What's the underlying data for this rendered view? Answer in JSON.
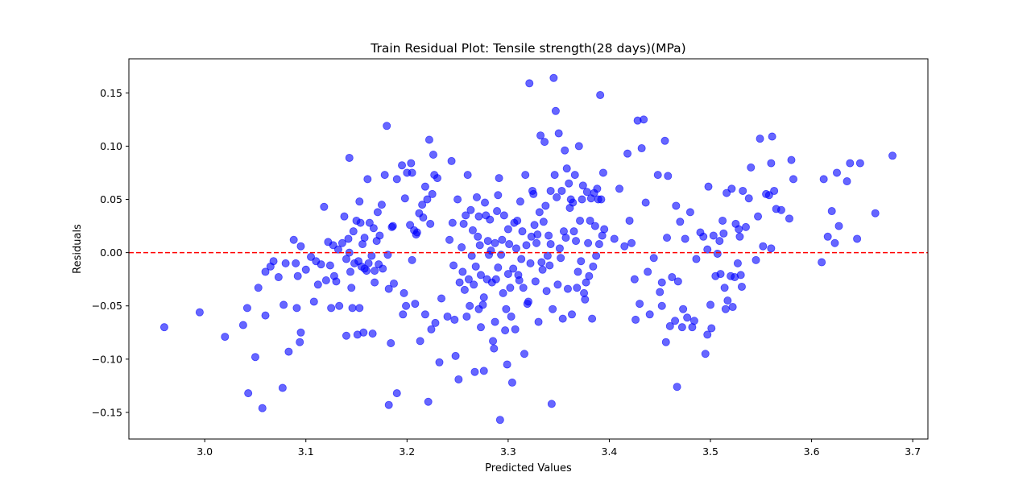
{
  "chart_data": {
    "type": "scatter",
    "title": "Train Residual Plot: Tensile strength(28 days)(MPa)",
    "xlabel": "Predicted Values",
    "ylabel": "Residuals",
    "xlim": [
      2.925,
      3.715
    ],
    "ylim": [
      -0.175,
      0.182
    ],
    "xticks": [
      3.0,
      3.1,
      3.2,
      3.3,
      3.4,
      3.5,
      3.6,
      3.7
    ],
    "xtick_labels": [
      "3.0",
      "3.1",
      "3.2",
      "3.3",
      "3.4",
      "3.5",
      "3.6",
      "3.7"
    ],
    "yticks": [
      -0.15,
      -0.1,
      -0.05,
      0.0,
      0.05,
      0.1,
      0.15
    ],
    "ytick_labels": [
      "−0.15",
      "−0.10",
      "−0.05",
      "0.00",
      "0.05",
      "0.10",
      "0.15"
    ],
    "grid": false,
    "marker_color": "#0000ff",
    "marker_alpha": 0.6,
    "reference_line": {
      "y": 0.0,
      "color": "#ff0000",
      "style": "dashed"
    },
    "points": [
      [
        2.96,
        -0.07
      ],
      [
        2.995,
        -0.056
      ],
      [
        3.02,
        -0.079
      ],
      [
        3.038,
        -0.068
      ],
      [
        3.042,
        -0.052
      ],
      [
        3.043,
        -0.132
      ],
      [
        3.05,
        -0.098
      ],
      [
        3.053,
        -0.033
      ],
      [
        3.057,
        -0.146
      ],
      [
        3.06,
        -0.059
      ],
      [
        3.06,
        -0.018
      ],
      [
        3.065,
        -0.013
      ],
      [
        3.068,
        -0.008
      ],
      [
        3.073,
        -0.023
      ],
      [
        3.077,
        -0.127
      ],
      [
        3.078,
        -0.049
      ],
      [
        3.08,
        -0.01
      ],
      [
        3.083,
        -0.093
      ],
      [
        3.088,
        0.012
      ],
      [
        3.09,
        -0.01
      ],
      [
        3.091,
        -0.052
      ],
      [
        3.092,
        -0.022
      ],
      [
        3.094,
        -0.084
      ],
      [
        3.095,
        -0.075
      ],
      [
        3.095,
        0.006
      ],
      [
        3.1,
        -0.016
      ],
      [
        3.105,
        -0.004
      ],
      [
        3.108,
        -0.046
      ],
      [
        3.11,
        -0.008
      ],
      [
        3.112,
        -0.03
      ],
      [
        3.115,
        -0.011
      ],
      [
        3.118,
        0.043
      ],
      [
        3.12,
        -0.026
      ],
      [
        3.122,
        0.01
      ],
      [
        3.124,
        -0.012
      ],
      [
        3.125,
        -0.052
      ],
      [
        3.127,
        0.007
      ],
      [
        3.128,
        -0.022
      ],
      [
        3.13,
        -0.027
      ],
      [
        3.132,
        0.003
      ],
      [
        3.133,
        -0.05
      ],
      [
        3.136,
        0.009
      ],
      [
        3.138,
        0.034
      ],
      [
        3.14,
        -0.006
      ],
      [
        3.14,
        -0.078
      ],
      [
        3.142,
        0.013
      ],
      [
        3.143,
        0.0
      ],
      [
        3.143,
        0.089
      ],
      [
        3.144,
        -0.018
      ],
      [
        3.145,
        -0.033
      ],
      [
        3.146,
        -0.052
      ],
      [
        3.147,
        0.02
      ],
      [
        3.148,
        -0.01
      ],
      [
        3.15,
        0.03
      ],
      [
        3.151,
        -0.077
      ],
      [
        3.152,
        -0.008
      ],
      [
        3.153,
        0.048
      ],
      [
        3.153,
        -0.052
      ],
      [
        3.154,
        0.028
      ],
      [
        3.155,
        -0.013
      ],
      [
        3.156,
        0.008
      ],
      [
        3.157,
        -0.075
      ],
      [
        3.158,
        0.014
      ],
      [
        3.158,
        -0.015
      ],
      [
        3.16,
        -0.017
      ],
      [
        3.161,
        0.069
      ],
      [
        3.162,
        -0.01
      ],
      [
        3.163,
        0.028
      ],
      [
        3.165,
        -0.003
      ],
      [
        3.166,
        -0.076
      ],
      [
        3.167,
        0.023
      ],
      [
        3.168,
        -0.017
      ],
      [
        3.168,
        -0.028
      ],
      [
        3.17,
        0.011
      ],
      [
        3.171,
        0.038
      ],
      [
        3.172,
        -0.011
      ],
      [
        3.173,
        0.016
      ],
      [
        3.175,
        0.045
      ],
      [
        3.176,
        -0.015
      ],
      [
        3.178,
        0.073
      ],
      [
        3.18,
        0.119
      ],
      [
        3.181,
        -0.002
      ],
      [
        3.182,
        -0.034
      ],
      [
        3.182,
        -0.143
      ],
      [
        3.184,
        -0.085
      ],
      [
        3.185,
        0.024
      ],
      [
        3.186,
        0.025
      ],
      [
        3.187,
        -0.029
      ],
      [
        3.19,
        0.069
      ],
      [
        3.19,
        -0.132
      ],
      [
        3.195,
        0.082
      ],
      [
        3.196,
        -0.058
      ],
      [
        3.197,
        -0.038
      ],
      [
        3.198,
        0.051
      ],
      [
        3.199,
        -0.05
      ],
      [
        3.2,
        0.075
      ],
      [
        3.203,
        0.026
      ],
      [
        3.204,
        0.084
      ],
      [
        3.205,
        0.075
      ],
      [
        3.205,
        -0.007
      ],
      [
        3.207,
        0.021
      ],
      [
        3.208,
        -0.048
      ],
      [
        3.209,
        0.017
      ],
      [
        3.21,
        0.019
      ],
      [
        3.212,
        0.037
      ],
      [
        3.213,
        -0.083
      ],
      [
        3.215,
        0.045
      ],
      [
        3.216,
        0.033
      ],
      [
        3.218,
        -0.058
      ],
      [
        3.218,
        0.062
      ],
      [
        3.22,
        0.05
      ],
      [
        3.221,
        -0.14
      ],
      [
        3.222,
        0.106
      ],
      [
        3.223,
        0.027
      ],
      [
        3.224,
        -0.072
      ],
      [
        3.225,
        0.055
      ],
      [
        3.226,
        0.092
      ],
      [
        3.227,
        0.073
      ],
      [
        3.228,
        -0.066
      ],
      [
        3.23,
        0.07
      ],
      [
        3.232,
        -0.103
      ],
      [
        3.234,
        -0.043
      ],
      [
        3.24,
        -0.06
      ],
      [
        3.242,
        0.012
      ],
      [
        3.244,
        0.086
      ],
      [
        3.245,
        0.028
      ],
      [
        3.246,
        -0.012
      ],
      [
        3.247,
        -0.063
      ],
      [
        3.248,
        -0.097
      ],
      [
        3.25,
        0.05
      ],
      [
        3.251,
        -0.119
      ],
      [
        3.252,
        -0.028
      ],
      [
        3.254,
        0.005
      ],
      [
        3.255,
        -0.018
      ],
      [
        3.256,
        0.027
      ],
      [
        3.257,
        -0.035
      ],
      [
        3.258,
        0.035
      ],
      [
        3.259,
        -0.06
      ],
      [
        3.26,
        0.073
      ],
      [
        3.261,
        -0.025
      ],
      [
        3.262,
        -0.05
      ],
      [
        3.263,
        0.04
      ],
      [
        3.264,
        -0.003
      ],
      [
        3.265,
        0.021
      ],
      [
        3.266,
        -0.03
      ],
      [
        3.267,
        -0.112
      ],
      [
        3.268,
        -0.013
      ],
      [
        3.269,
        0.052
      ],
      [
        3.27,
        0.015
      ],
      [
        3.271,
        -0.053
      ],
      [
        3.271,
        0.034
      ],
      [
        3.272,
        0.007
      ],
      [
        3.273,
        -0.021
      ],
      [
        3.273,
        -0.07
      ],
      [
        3.275,
        -0.049
      ],
      [
        3.276,
        -0.111
      ],
      [
        3.276,
        -0.042
      ],
      [
        3.277,
        0.047
      ],
      [
        3.278,
        0.035
      ],
      [
        3.279,
        -0.025
      ],
      [
        3.28,
        0.011
      ],
      [
        3.281,
        -0.002
      ],
      [
        3.282,
        0.031
      ],
      [
        3.283,
        0.002
      ],
      [
        3.284,
        -0.028
      ],
      [
        3.285,
        -0.083
      ],
      [
        3.286,
        -0.09
      ],
      [
        3.287,
        0.009
      ],
      [
        3.287,
        -0.065
      ],
      [
        3.288,
        -0.025
      ],
      [
        3.289,
        0.039
      ],
      [
        3.29,
        0.054
      ],
      [
        3.29,
        -0.014
      ],
      [
        3.291,
        0.07
      ],
      [
        3.292,
        -0.157
      ],
      [
        3.293,
        -0.002
      ],
      [
        3.294,
        0.012
      ],
      [
        3.295,
        -0.038
      ],
      [
        3.296,
        0.035
      ],
      [
        3.297,
        -0.073
      ],
      [
        3.298,
        -0.053
      ],
      [
        3.299,
        -0.105
      ],
      [
        3.3,
        0.022
      ],
      [
        3.3,
        -0.02
      ],
      [
        3.301,
        0.008
      ],
      [
        3.302,
        -0.033
      ],
      [
        3.303,
        -0.06
      ],
      [
        3.304,
        -0.122
      ],
      [
        3.305,
        -0.015
      ],
      [
        3.306,
        0.028
      ],
      [
        3.307,
        -0.072
      ],
      [
        3.308,
        0.004
      ],
      [
        3.309,
        0.03
      ],
      [
        3.31,
        -0.021
      ],
      [
        3.311,
        -0.026
      ],
      [
        3.312,
        0.048
      ],
      [
        3.313,
        -0.006
      ],
      [
        3.314,
        0.02
      ],
      [
        3.315,
        -0.033
      ],
      [
        3.316,
        -0.095
      ],
      [
        3.317,
        0.073
      ],
      [
        3.318,
        0.007
      ],
      [
        3.319,
        -0.048
      ],
      [
        3.32,
        -0.046
      ],
      [
        3.321,
        0.159
      ],
      [
        3.322,
        -0.01
      ],
      [
        3.323,
        0.015
      ],
      [
        3.324,
        0.058
      ],
      [
        3.325,
        0.055
      ],
      [
        3.326,
        0.026
      ],
      [
        3.327,
        -0.027
      ],
      [
        3.328,
        0.009
      ],
      [
        3.329,
        0.017
      ],
      [
        3.33,
        -0.065
      ],
      [
        3.331,
        0.038
      ],
      [
        3.332,
        0.11
      ],
      [
        3.333,
        -0.009
      ],
      [
        3.334,
        -0.016
      ],
      [
        3.335,
        0.029
      ],
      [
        3.336,
        0.104
      ],
      [
        3.337,
        0.044
      ],
      [
        3.338,
        -0.036
      ],
      [
        3.339,
        -0.003
      ],
      [
        3.34,
        0.016
      ],
      [
        3.341,
        -0.012
      ],
      [
        3.342,
        0.008
      ],
      [
        3.342,
        0.058
      ],
      [
        3.343,
        -0.142
      ],
      [
        3.344,
        -0.053
      ],
      [
        3.345,
        0.164
      ],
      [
        3.346,
        0.073
      ],
      [
        3.347,
        0.133
      ],
      [
        3.348,
        0.052
      ],
      [
        3.349,
        -0.03
      ],
      [
        3.35,
        0.112
      ],
      [
        3.351,
        0.004
      ],
      [
        3.352,
        -0.005
      ],
      [
        3.353,
        0.058
      ],
      [
        3.354,
        -0.062
      ],
      [
        3.355,
        0.02
      ],
      [
        3.356,
        0.096
      ],
      [
        3.357,
        0.014
      ],
      [
        3.358,
        0.079
      ],
      [
        3.359,
        -0.034
      ],
      [
        3.36,
        0.065
      ],
      [
        3.361,
        0.042
      ],
      [
        3.362,
        0.05
      ],
      [
        3.363,
        -0.058
      ],
      [
        3.364,
        0.047
      ],
      [
        3.365,
        0.02
      ],
      [
        3.366,
        0.073
      ],
      [
        3.367,
        0.011
      ],
      [
        3.368,
        -0.033
      ],
      [
        3.369,
        -0.018
      ],
      [
        3.37,
        0.1
      ],
      [
        3.371,
        0.03
      ],
      [
        3.372,
        -0.008
      ],
      [
        3.373,
        0.05
      ],
      [
        3.374,
        0.063
      ],
      [
        3.375,
        -0.038
      ],
      [
        3.376,
        -0.044
      ],
      [
        3.377,
        -0.028
      ],
      [
        3.378,
        0.057
      ],
      [
        3.379,
        0.009
      ],
      [
        3.38,
        -0.022
      ],
      [
        3.381,
        0.03
      ],
      [
        3.382,
        0.051
      ],
      [
        3.383,
        -0.062
      ],
      [
        3.384,
        -0.013
      ],
      [
        3.385,
        0.056
      ],
      [
        3.386,
        0.025
      ],
      [
        3.387,
        -0.003
      ],
      [
        3.388,
        0.06
      ],
      [
        3.389,
        0.05
      ],
      [
        3.39,
        0.008
      ],
      [
        3.391,
        0.148
      ],
      [
        3.392,
        0.05
      ],
      [
        3.393,
        0.016
      ],
      [
        3.394,
        0.075
      ],
      [
        3.395,
        0.022
      ],
      [
        3.405,
        0.013
      ],
      [
        3.41,
        0.06
      ],
      [
        3.415,
        0.006
      ],
      [
        3.418,
        0.093
      ],
      [
        3.42,
        0.03
      ],
      [
        3.422,
        0.009
      ],
      [
        3.425,
        -0.025
      ],
      [
        3.426,
        -0.063
      ],
      [
        3.428,
        0.124
      ],
      [
        3.43,
        -0.048
      ],
      [
        3.432,
        0.098
      ],
      [
        3.434,
        0.125
      ],
      [
        3.436,
        0.047
      ],
      [
        3.438,
        -0.018
      ],
      [
        3.44,
        -0.058
      ],
      [
        3.444,
        -0.005
      ],
      [
        3.448,
        0.073
      ],
      [
        3.45,
        -0.037
      ],
      [
        3.452,
        -0.05
      ],
      [
        3.452,
        -0.028
      ],
      [
        3.455,
        0.105
      ],
      [
        3.456,
        -0.084
      ],
      [
        3.457,
        0.014
      ],
      [
        3.458,
        0.072
      ],
      [
        3.46,
        -0.069
      ],
      [
        3.462,
        -0.023
      ],
      [
        3.465,
        -0.064
      ],
      [
        3.466,
        0.044
      ],
      [
        3.467,
        -0.126
      ],
      [
        3.468,
        -0.027
      ],
      [
        3.47,
        0.029
      ],
      [
        3.472,
        -0.07
      ],
      [
        3.473,
        -0.053
      ],
      [
        3.475,
        0.013
      ],
      [
        3.477,
        -0.061
      ],
      [
        3.48,
        0.038
      ],
      [
        3.482,
        -0.07
      ],
      [
        3.484,
        -0.064
      ],
      [
        3.486,
        -0.006
      ],
      [
        3.49,
        0.019
      ],
      [
        3.493,
        0.015
      ],
      [
        3.495,
        -0.095
      ],
      [
        3.497,
        0.003
      ],
      [
        3.497,
        -0.077
      ],
      [
        3.498,
        0.062
      ],
      [
        3.5,
        -0.049
      ],
      [
        3.501,
        -0.071
      ],
      [
        3.503,
        0.016
      ],
      [
        3.505,
        -0.022
      ],
      [
        3.507,
        -0.001
      ],
      [
        3.509,
        0.011
      ],
      [
        3.51,
        -0.02
      ],
      [
        3.512,
        0.03
      ],
      [
        3.513,
        0.018
      ],
      [
        3.514,
        -0.033
      ],
      [
        3.515,
        -0.053
      ],
      [
        3.516,
        0.056
      ],
      [
        3.517,
        -0.045
      ],
      [
        3.52,
        -0.022
      ],
      [
        3.521,
        0.06
      ],
      [
        3.522,
        -0.051
      ],
      [
        3.524,
        -0.023
      ],
      [
        3.525,
        0.027
      ],
      [
        3.527,
        -0.01
      ],
      [
        3.528,
        0.022
      ],
      [
        3.529,
        0.015
      ],
      [
        3.53,
        -0.021
      ],
      [
        3.531,
        -0.032
      ],
      [
        3.532,
        0.058
      ],
      [
        3.535,
        0.024
      ],
      [
        3.538,
        0.051
      ],
      [
        3.54,
        0.08
      ],
      [
        3.545,
        -0.007
      ],
      [
        3.547,
        0.034
      ],
      [
        3.549,
        0.107
      ],
      [
        3.552,
        0.006
      ],
      [
        3.555,
        0.055
      ],
      [
        3.558,
        0.054
      ],
      [
        3.56,
        0.004
      ],
      [
        3.56,
        0.084
      ],
      [
        3.561,
        0.109
      ],
      [
        3.563,
        0.058
      ],
      [
        3.565,
        0.041
      ],
      [
        3.57,
        0.04
      ],
      [
        3.578,
        0.032
      ],
      [
        3.58,
        0.087
      ],
      [
        3.582,
        0.069
      ],
      [
        3.61,
        -0.009
      ],
      [
        3.612,
        0.069
      ],
      [
        3.616,
        0.015
      ],
      [
        3.62,
        0.039
      ],
      [
        3.623,
        0.009
      ],
      [
        3.625,
        0.075
      ],
      [
        3.627,
        0.025
      ],
      [
        3.635,
        0.067
      ],
      [
        3.638,
        0.084
      ],
      [
        3.645,
        0.013
      ],
      [
        3.648,
        0.084
      ],
      [
        3.663,
        0.037
      ],
      [
        3.68,
        0.091
      ]
    ]
  }
}
